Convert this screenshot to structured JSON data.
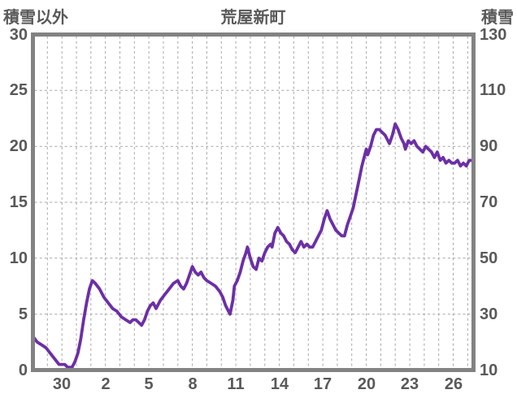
{
  "header": {
    "left_axis_title": "積雪以外",
    "station_title": "荒屋新町",
    "right_axis_title": "積雪"
  },
  "chart_data": {
    "type": "line",
    "title": "荒屋新町",
    "left_axis_label": "積雪以外",
    "right_axis_label": "積雪",
    "series_unit": "cm",
    "x_tick_labels": [
      "30",
      "2",
      "5",
      "8",
      "11",
      "14",
      "17",
      "20",
      "23",
      "26"
    ],
    "x_tick_positions": [
      2,
      5,
      8,
      11,
      14,
      17,
      20,
      23,
      26,
      29
    ],
    "x_grid_step": 1,
    "xlim": [
      0,
      30.4
    ],
    "left_ticks": [
      0,
      5,
      10,
      15,
      20,
      25,
      30
    ],
    "right_ticks": [
      10,
      30,
      50,
      70,
      90,
      110,
      130
    ],
    "ylim_left": [
      0,
      30
    ],
    "ylim_right": [
      10,
      130
    ],
    "grid": true,
    "legend_position": "none",
    "colors": {
      "line": "#6C2FA6",
      "frame": "#828282",
      "grid": "#a6a6a6",
      "text": "#595959",
      "background": "#ffffff"
    },
    "series": [
      {
        "name": "積雪",
        "axis": "right",
        "points": [
          [
            0,
            22
          ],
          [
            0.3,
            20
          ],
          [
            0.6,
            19
          ],
          [
            0.9,
            18
          ],
          [
            1.2,
            16
          ],
          [
            1.5,
            14
          ],
          [
            1.8,
            12
          ],
          [
            2.0,
            12
          ],
          [
            2.2,
            12
          ],
          [
            2.4,
            11
          ],
          [
            2.7,
            11
          ],
          [
            2.9,
            13
          ],
          [
            3.1,
            16
          ],
          [
            3.3,
            21
          ],
          [
            3.5,
            28
          ],
          [
            3.7,
            34
          ],
          [
            3.9,
            39
          ],
          [
            4.1,
            42
          ],
          [
            4.3,
            41
          ],
          [
            4.6,
            39
          ],
          [
            4.9,
            36
          ],
          [
            5.2,
            34
          ],
          [
            5.5,
            32
          ],
          [
            5.8,
            31
          ],
          [
            6.1,
            29
          ],
          [
            6.4,
            28
          ],
          [
            6.7,
            27
          ],
          [
            6.9,
            28
          ],
          [
            7.1,
            28
          ],
          [
            7.3,
            27
          ],
          [
            7.5,
            26
          ],
          [
            7.7,
            28
          ],
          [
            7.9,
            31
          ],
          [
            8.1,
            33
          ],
          [
            8.3,
            34
          ],
          [
            8.5,
            32
          ],
          [
            8.8,
            35
          ],
          [
            9.1,
            37
          ],
          [
            9.4,
            39
          ],
          [
            9.7,
            41
          ],
          [
            10.0,
            42
          ],
          [
            10.2,
            40
          ],
          [
            10.4,
            39
          ],
          [
            10.6,
            41
          ],
          [
            10.8,
            44
          ],
          [
            11.0,
            47
          ],
          [
            11.2,
            45
          ],
          [
            11.4,
            44
          ],
          [
            11.6,
            45
          ],
          [
            11.8,
            43
          ],
          [
            12.0,
            42
          ],
          [
            12.3,
            41
          ],
          [
            12.6,
            40
          ],
          [
            12.9,
            38
          ],
          [
            13.1,
            36
          ],
          [
            13.3,
            33
          ],
          [
            13.5,
            31
          ],
          [
            13.6,
            30
          ],
          [
            13.8,
            35
          ],
          [
            13.9,
            40
          ],
          [
            14.1,
            42
          ],
          [
            14.3,
            45
          ],
          [
            14.5,
            49
          ],
          [
            14.7,
            52
          ],
          [
            14.8,
            54
          ],
          [
            15.0,
            50
          ],
          [
            15.2,
            47
          ],
          [
            15.4,
            46
          ],
          [
            15.6,
            50
          ],
          [
            15.8,
            49
          ],
          [
            16.0,
            52
          ],
          [
            16.2,
            54
          ],
          [
            16.4,
            55
          ],
          [
            16.5,
            54
          ],
          [
            16.7,
            59
          ],
          [
            16.9,
            61
          ],
          [
            17.1,
            59
          ],
          [
            17.3,
            58
          ],
          [
            17.5,
            56
          ],
          [
            17.7,
            55
          ],
          [
            17.9,
            53
          ],
          [
            18.1,
            52
          ],
          [
            18.3,
            54
          ],
          [
            18.5,
            56
          ],
          [
            18.7,
            54
          ],
          [
            18.9,
            55
          ],
          [
            19.1,
            54
          ],
          [
            19.3,
            54
          ],
          [
            19.5,
            56
          ],
          [
            19.7,
            58
          ],
          [
            19.9,
            60
          ],
          [
            20.1,
            64
          ],
          [
            20.3,
            67
          ],
          [
            20.5,
            64
          ],
          [
            20.7,
            62
          ],
          [
            20.9,
            60
          ],
          [
            21.1,
            59
          ],
          [
            21.3,
            58
          ],
          [
            21.5,
            58
          ],
          [
            21.7,
            62
          ],
          [
            21.9,
            65
          ],
          [
            22.1,
            68
          ],
          [
            22.3,
            73
          ],
          [
            22.5,
            78
          ],
          [
            22.7,
            83
          ],
          [
            22.9,
            87
          ],
          [
            23.0,
            89
          ],
          [
            23.1,
            87
          ],
          [
            23.3,
            90
          ],
          [
            23.5,
            94
          ],
          [
            23.7,
            96
          ],
          [
            23.9,
            96
          ],
          [
            24.1,
            95
          ],
          [
            24.3,
            94
          ],
          [
            24.5,
            92
          ],
          [
            24.6,
            91
          ],
          [
            24.8,
            94
          ],
          [
            25.0,
            98
          ],
          [
            25.2,
            96
          ],
          [
            25.4,
            93
          ],
          [
            25.6,
            91
          ],
          [
            25.7,
            89
          ],
          [
            25.9,
            92
          ],
          [
            26.1,
            91
          ],
          [
            26.3,
            92
          ],
          [
            26.5,
            90
          ],
          [
            26.7,
            89
          ],
          [
            26.9,
            88
          ],
          [
            27.1,
            90
          ],
          [
            27.3,
            89
          ],
          [
            27.5,
            88
          ],
          [
            27.7,
            86
          ],
          [
            27.9,
            88
          ],
          [
            28.1,
            85
          ],
          [
            28.3,
            86
          ],
          [
            28.5,
            84
          ],
          [
            28.7,
            85
          ],
          [
            28.9,
            84
          ],
          [
            29.1,
            84
          ],
          [
            29.3,
            85
          ],
          [
            29.5,
            83
          ],
          [
            29.7,
            84
          ],
          [
            29.9,
            83
          ],
          [
            30.1,
            85
          ],
          [
            30.3,
            85
          ]
        ]
      }
    ]
  }
}
